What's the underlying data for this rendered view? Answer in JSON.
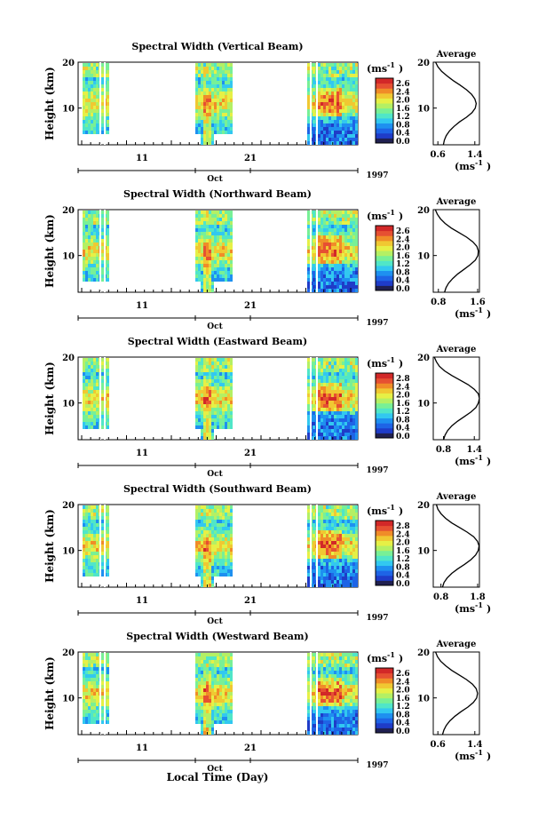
{
  "figure": {
    "bottom_xlabel": "Local Time (Day)"
  },
  "colorbar": {
    "unit": "(ms",
    "unit_exp": "-1",
    "unit_close": ")",
    "colors": [
      "#202050",
      "#1f3cc8",
      "#1e64e6",
      "#1e90f0",
      "#32c8f0",
      "#50e6c8",
      "#78f096",
      "#b4f064",
      "#e6f046",
      "#f0c832",
      "#f08c28",
      "#e65032",
      "#d22828"
    ]
  },
  "chart_data": [
    {
      "type": "heatmap",
      "title": "Spectral Width (Vertical Beam)",
      "ylabel": "Height (km)",
      "ylim": [
        2,
        20
      ],
      "yticks": [
        "20",
        "10"
      ],
      "xticks": [
        "11",
        "21"
      ],
      "month_label": "Oct",
      "year_label": "1997",
      "colorbar_ticks": [
        "2.6",
        "2.4",
        "2.0",
        "1.6",
        "1.2",
        "0.8",
        "0.4",
        "0.0"
      ],
      "average": {
        "title": "Average",
        "xlabel": "(ms",
        "xlabel_exp": "-1",
        "xlabel_close": ")",
        "xticks": [
          "0.6",
          "1.4"
        ],
        "xlim": [
          0.5,
          1.5
        ],
        "yticks": [
          "20",
          "10"
        ],
        "height": [
          2,
          3,
          4,
          5,
          6,
          7,
          8,
          9,
          10,
          11,
          12,
          13,
          14,
          15,
          16,
          17,
          18,
          19,
          20
        ],
        "width": [
          0.72,
          0.74,
          0.78,
          0.85,
          0.95,
          1.07,
          1.22,
          1.34,
          1.41,
          1.43,
          1.4,
          1.33,
          1.22,
          1.08,
          0.93,
          0.8,
          0.68,
          0.6,
          0.55
        ]
      }
    },
    {
      "type": "heatmap",
      "title": "Spectral Width (Northward Beam)",
      "ylabel": "Height (km)",
      "ylim": [
        2,
        20
      ],
      "yticks": [
        "20",
        "10"
      ],
      "xticks": [
        "11",
        "21"
      ],
      "month_label": "Oct",
      "year_label": "1997",
      "colorbar_ticks": [
        "2.6",
        "2.4",
        "2.0",
        "1.6",
        "1.2",
        "0.8",
        "0.4",
        "0.0"
      ],
      "average": {
        "title": "Average",
        "xlabel": "(ms",
        "xlabel_exp": "-1",
        "xlabel_close": ")",
        "xticks": [
          "0.8",
          "1.6"
        ],
        "xlim": [
          0.7,
          1.6
        ],
        "yticks": [
          "20",
          "10"
        ],
        "height": [
          2,
          3,
          4,
          5,
          6,
          7,
          8,
          9,
          10,
          11,
          12,
          13,
          14,
          15,
          16,
          17,
          18,
          19,
          20
        ],
        "width": [
          0.92,
          0.95,
          1.0,
          1.08,
          1.18,
          1.3,
          1.42,
          1.52,
          1.57,
          1.58,
          1.55,
          1.47,
          1.35,
          1.2,
          1.05,
          0.93,
          0.84,
          0.78,
          0.74
        ]
      }
    },
    {
      "type": "heatmap",
      "title": "Spectral Width (Eastward Beam)",
      "ylabel": "Height (km)",
      "ylim": [
        2,
        20
      ],
      "yticks": [
        "20",
        "10"
      ],
      "xticks": [
        "11",
        "21"
      ],
      "month_label": "Oct",
      "year_label": "1997",
      "colorbar_ticks": [
        "2.8",
        "2.4",
        "2.0",
        "1.6",
        "1.2",
        "0.8",
        "0.4",
        "0.0"
      ],
      "average": {
        "title": "Average",
        "xlabel": "(ms",
        "xlabel_exp": "-1",
        "xlabel_close": ")",
        "xticks": [
          "0.8",
          "1.4"
        ],
        "xlim": [
          0.6,
          1.5
        ],
        "yticks": [
          "20",
          "10"
        ],
        "height": [
          2,
          3,
          4,
          5,
          6,
          7,
          8,
          9,
          10,
          11,
          12,
          13,
          14,
          15,
          16,
          17,
          18,
          19,
          20
        ],
        "width": [
          0.8,
          0.83,
          0.88,
          0.96,
          1.07,
          1.2,
          1.33,
          1.43,
          1.48,
          1.5,
          1.48,
          1.4,
          1.28,
          1.12,
          0.96,
          0.82,
          0.72,
          0.66,
          0.62
        ]
      }
    },
    {
      "type": "heatmap",
      "title": "Spectral Width (Southward Beam)",
      "ylabel": "Height (km)",
      "ylim": [
        2,
        20
      ],
      "yticks": [
        "20",
        "10"
      ],
      "xticks": [
        "11",
        "21"
      ],
      "month_label": "Oct",
      "year_label": "1997",
      "colorbar_ticks": [
        "2.8",
        "2.4",
        "2.0",
        "1.6",
        "1.2",
        "0.8",
        "0.4",
        "0.0"
      ],
      "average": {
        "title": "Average",
        "xlabel": "(ms",
        "xlabel_exp": "-1",
        "xlabel_close": ")",
        "xticks": [
          "0.8",
          "1.8"
        ],
        "xlim": [
          0.6,
          1.8
        ],
        "yticks": [
          "20",
          "10"
        ],
        "height": [
          2,
          3,
          4,
          5,
          6,
          7,
          8,
          9,
          10,
          11,
          12,
          13,
          14,
          15,
          16,
          17,
          18,
          19,
          20
        ],
        "width": [
          0.84,
          0.88,
          0.96,
          1.08,
          1.24,
          1.42,
          1.58,
          1.7,
          1.77,
          1.79,
          1.75,
          1.65,
          1.48,
          1.28,
          1.08,
          0.92,
          0.8,
          0.72,
          0.68
        ]
      }
    },
    {
      "type": "heatmap",
      "title": "Spectral Width (Westward Beam)",
      "ylabel": "Height (km)",
      "ylim": [
        2,
        20
      ],
      "yticks": [
        "20",
        "10"
      ],
      "xticks": [
        "11",
        "21"
      ],
      "month_label": "Oct",
      "year_label": "1997",
      "colorbar_ticks": [
        "2.6",
        "2.4",
        "2.0",
        "1.6",
        "1.2",
        "0.8",
        "0.4",
        "0.0"
      ],
      "average": {
        "title": "Average",
        "xlabel": "(ms",
        "xlabel_exp": "-1",
        "xlabel_close": ")",
        "xticks": [
          "0.6",
          "1.4"
        ],
        "xlim": [
          0.5,
          1.5
        ],
        "yticks": [
          "20",
          "10"
        ],
        "height": [
          2,
          3,
          4,
          5,
          6,
          7,
          8,
          9,
          10,
          11,
          12,
          13,
          14,
          15,
          16,
          17,
          18,
          19,
          20
        ],
        "width": [
          0.7,
          0.73,
          0.78,
          0.86,
          0.97,
          1.1,
          1.25,
          1.37,
          1.44,
          1.46,
          1.43,
          1.35,
          1.22,
          1.06,
          0.9,
          0.77,
          0.66,
          0.59,
          0.55
        ]
      }
    }
  ]
}
